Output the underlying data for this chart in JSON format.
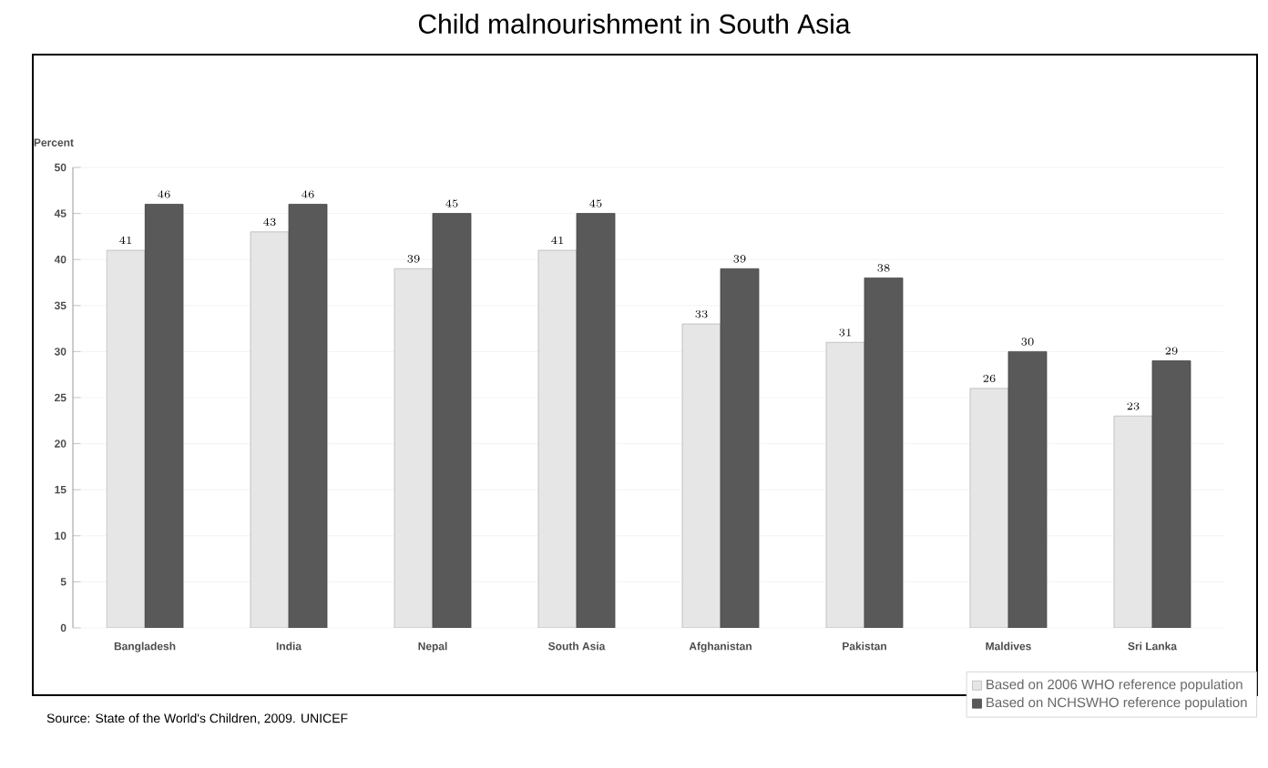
{
  "chart_data": {
    "type": "bar",
    "title": "Child malnourishment  in South Asia",
    "ylabel": "Percent",
    "categories": [
      "Bangladesh",
      "India",
      "Nepal",
      "South Asia",
      "Afghanistan",
      "Pakistan",
      "Maldives",
      "Sri Lanka"
    ],
    "series": [
      {
        "name": "Based on 2006 WHO reference population",
        "color": "#e6e6e6",
        "values": [
          41,
          43,
          39,
          41,
          33,
          31,
          26,
          23
        ]
      },
      {
        "name": "Based on NCHSWHO reference population",
        "color": "#595959",
        "values": [
          46,
          46,
          45,
          45,
          39,
          38,
          30,
          29
        ]
      }
    ],
    "ylim": [
      0,
      50
    ],
    "yticks": [
      0,
      5,
      10,
      15,
      20,
      25,
      30,
      35,
      40,
      45,
      50
    ],
    "grid": "y",
    "legend": "bottom right",
    "data_labels": true,
    "annotations": [
      "Source: State of the World's Children, 2009. UNICEF"
    ]
  }
}
